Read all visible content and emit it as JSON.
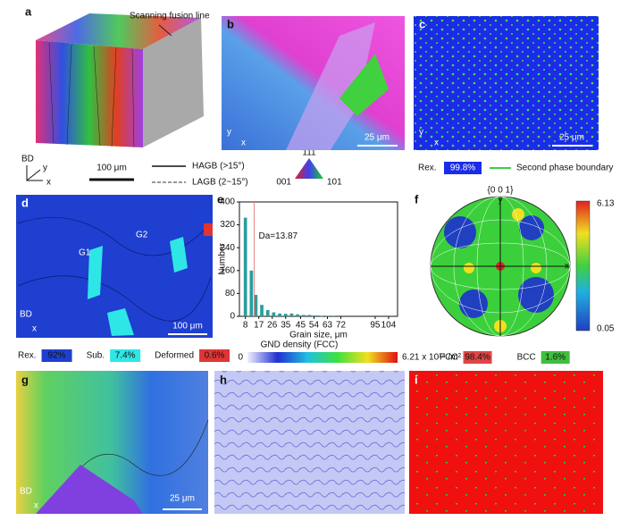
{
  "panel_letters": [
    "a",
    "b",
    "c",
    "d",
    "e",
    "f",
    "g",
    "h",
    "i"
  ],
  "panel_a": {
    "annotation": "Scanning fusion line",
    "axes": [
      "BD",
      "y",
      "x"
    ],
    "scale_bar": "100 μm"
  },
  "boundary_legend": {
    "hagb": "HAGB (>15°)",
    "lagb": "LAGB (2~15°)"
  },
  "ipf_key": [
    "111",
    "001",
    "101"
  ],
  "panel_b": {
    "scale_bar": "25 μm",
    "axes": [
      "y",
      "x"
    ]
  },
  "panel_c": {
    "scale_bar": "25 μm",
    "axes": [
      "y",
      "x"
    ],
    "legend": {
      "label": "Rex.",
      "value": "99.8%",
      "boundary": "Second phase boundary"
    }
  },
  "panel_d": {
    "scale_bar": "100 μm",
    "axes": [
      "BD",
      "x"
    ],
    "grains": [
      "G1",
      "G2"
    ],
    "legend": [
      {
        "label": "Rex.",
        "value": "92%",
        "color": "#1f3fd0"
      },
      {
        "label": "Sub.",
        "value": "7.4%",
        "color": "#2ee6e6"
      },
      {
        "label": "Deformed",
        "value": "0.6%",
        "color": "#e03535"
      }
    ]
  },
  "chart_data": {
    "type": "bar",
    "xlabel": "Grain size, μm",
    "ylabel": "Number",
    "color": "#2a9d9d",
    "x": [
      8,
      12,
      15,
      19,
      23,
      27,
      31,
      35,
      39,
      43,
      47,
      51,
      55,
      59,
      63,
      67
    ],
    "values": [
      345,
      160,
      75,
      40,
      22,
      14,
      10,
      9,
      10,
      7,
      5,
      5,
      3,
      2,
      2,
      1
    ],
    "xlim": [
      4,
      110
    ],
    "ylim": [
      0,
      400
    ],
    "xticks": [
      8,
      17,
      26,
      35,
      45,
      54,
      63,
      72,
      95,
      104
    ],
    "yticks": [
      0,
      80,
      160,
      240,
      320,
      400
    ],
    "mean_line": 13.87,
    "annotation": "Da=13.87",
    "line_color": "#e88888"
  },
  "panel_f": {
    "title": "{0 0 1}",
    "axes": [
      "y",
      "x"
    ],
    "colorbar": {
      "max": 6.13,
      "min": 0.05
    }
  },
  "gnd_legend": {
    "title": "GND density (FCC)",
    "min": 0,
    "max_label": "6.21 x 10¹⁴ /m²"
  },
  "phase_legend": [
    {
      "label": "FCC",
      "value": "98.4%",
      "color": "#e04545"
    },
    {
      "label": "BCC",
      "value": "1.6%",
      "color": "#3fbf3f"
    }
  ],
  "panel_g": {
    "scale_bar": "25 μm",
    "axes": [
      "BD",
      "x"
    ]
  }
}
